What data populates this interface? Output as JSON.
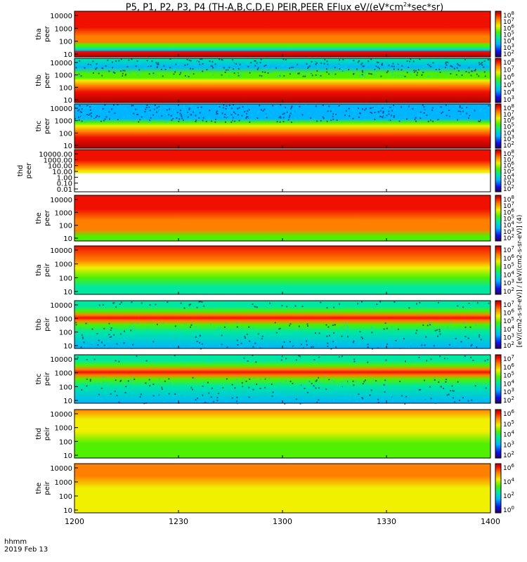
{
  "title": "P5, P1, P2, P3, P4 (TH-A,B,C,D,E) PEIR,PEER EFlux eV/(eV*cm",
  "title_sup": "2",
  "title_tail": "*sec*sr)",
  "footer": {
    "line1": "hhmm",
    "line2": "2019 Feb 13"
  },
  "colorbar_units_label": "[eV/(cm2-s-sr-eV)] / [eV/(cm2-s-sr-eV)] (4)",
  "chart_data": {
    "type": "heatmap",
    "x_axis": {
      "label": "hhmm",
      "date": "2019 Feb 13",
      "ticks": [
        "1200",
        "1230",
        "1300",
        "1330",
        "1400"
      ]
    },
    "panels": [
      {
        "id": "tha-peer",
        "probe": "tha",
        "instrument": "peer",
        "yticks": [
          "10",
          "100",
          "1000",
          "10000"
        ],
        "cbar_ticks": [
          "10^2",
          "10^3",
          "10^4",
          "10^5",
          "10^6",
          "10^7",
          "10^8"
        ],
        "profile": "tha_peer"
      },
      {
        "id": "thb-peer",
        "probe": "thb",
        "instrument": "peer",
        "yticks": [
          "10",
          "100",
          "1000",
          "10000"
        ],
        "cbar_ticks": [
          "10^3",
          "10^4",
          "10^5",
          "10^6",
          "10^7",
          "10^8"
        ],
        "profile": "thb_peer"
      },
      {
        "id": "thc-peer",
        "probe": "thc",
        "instrument": "peer",
        "yticks": [
          "10",
          "100",
          "1000",
          "10000"
        ],
        "cbar_ticks": [
          "10^2",
          "10^3",
          "10^4",
          "10^5",
          "10^6",
          "10^7",
          "10^8"
        ],
        "profile": "thc_peer"
      },
      {
        "id": "thd-peer",
        "probe": "thd",
        "instrument": "peer",
        "yticks": [
          "0.01",
          "0.10",
          "1.00",
          "10.00",
          "100.00",
          "1000.00",
          "10000.00"
        ],
        "cbar_ticks": [
          "10^2",
          "10^3",
          "10^4",
          "10^5",
          "10^6",
          "10^7",
          "10^8"
        ],
        "profile": "thd_peer"
      },
      {
        "id": "the-peer",
        "probe": "the",
        "instrument": "peer",
        "yticks": [
          "10",
          "100",
          "1000",
          "10000"
        ],
        "cbar_ticks": [
          "10^2",
          "10^3",
          "10^4",
          "10^5",
          "10^6",
          "10^7",
          "10^8"
        ],
        "profile": "the_peer"
      },
      {
        "id": "tha-peir",
        "probe": "tha",
        "instrument": "peir",
        "yticks": [
          "10",
          "100",
          "1000",
          "10000"
        ],
        "cbar_ticks": [
          "10^2",
          "10^3",
          "10^4",
          "10^5",
          "10^6",
          "10^7"
        ],
        "profile": "ion_a"
      },
      {
        "id": "thb-peir",
        "probe": "thb",
        "instrument": "peir",
        "yticks": [
          "10",
          "100",
          "1000",
          "10000"
        ],
        "cbar_ticks": [
          "10^2",
          "10^3",
          "10^4",
          "10^5",
          "10^6",
          "10^7"
        ],
        "profile": "ion_b"
      },
      {
        "id": "thc-peir",
        "probe": "thc",
        "instrument": "peir",
        "yticks": [
          "10",
          "100",
          "1000",
          "10000"
        ],
        "cbar_ticks": [
          "10^2",
          "10^3",
          "10^4",
          "10^5",
          "10^6",
          "10^7"
        ],
        "profile": "ion_b"
      },
      {
        "id": "thd-peir",
        "probe": "thd",
        "instrument": "peir",
        "yticks": [
          "10",
          "100",
          "1000",
          "10000"
        ],
        "cbar_ticks": [
          "10^2",
          "10^3",
          "10^4",
          "10^5",
          "10^6"
        ],
        "profile": "ion_d"
      },
      {
        "id": "the-peir",
        "probe": "the",
        "instrument": "peir",
        "yticks": [
          "10",
          "100",
          "1000",
          "10000"
        ],
        "cbar_ticks": [
          "10^0",
          "10^2",
          "10^4",
          "10^6"
        ],
        "profile": "ion_e"
      }
    ]
  }
}
